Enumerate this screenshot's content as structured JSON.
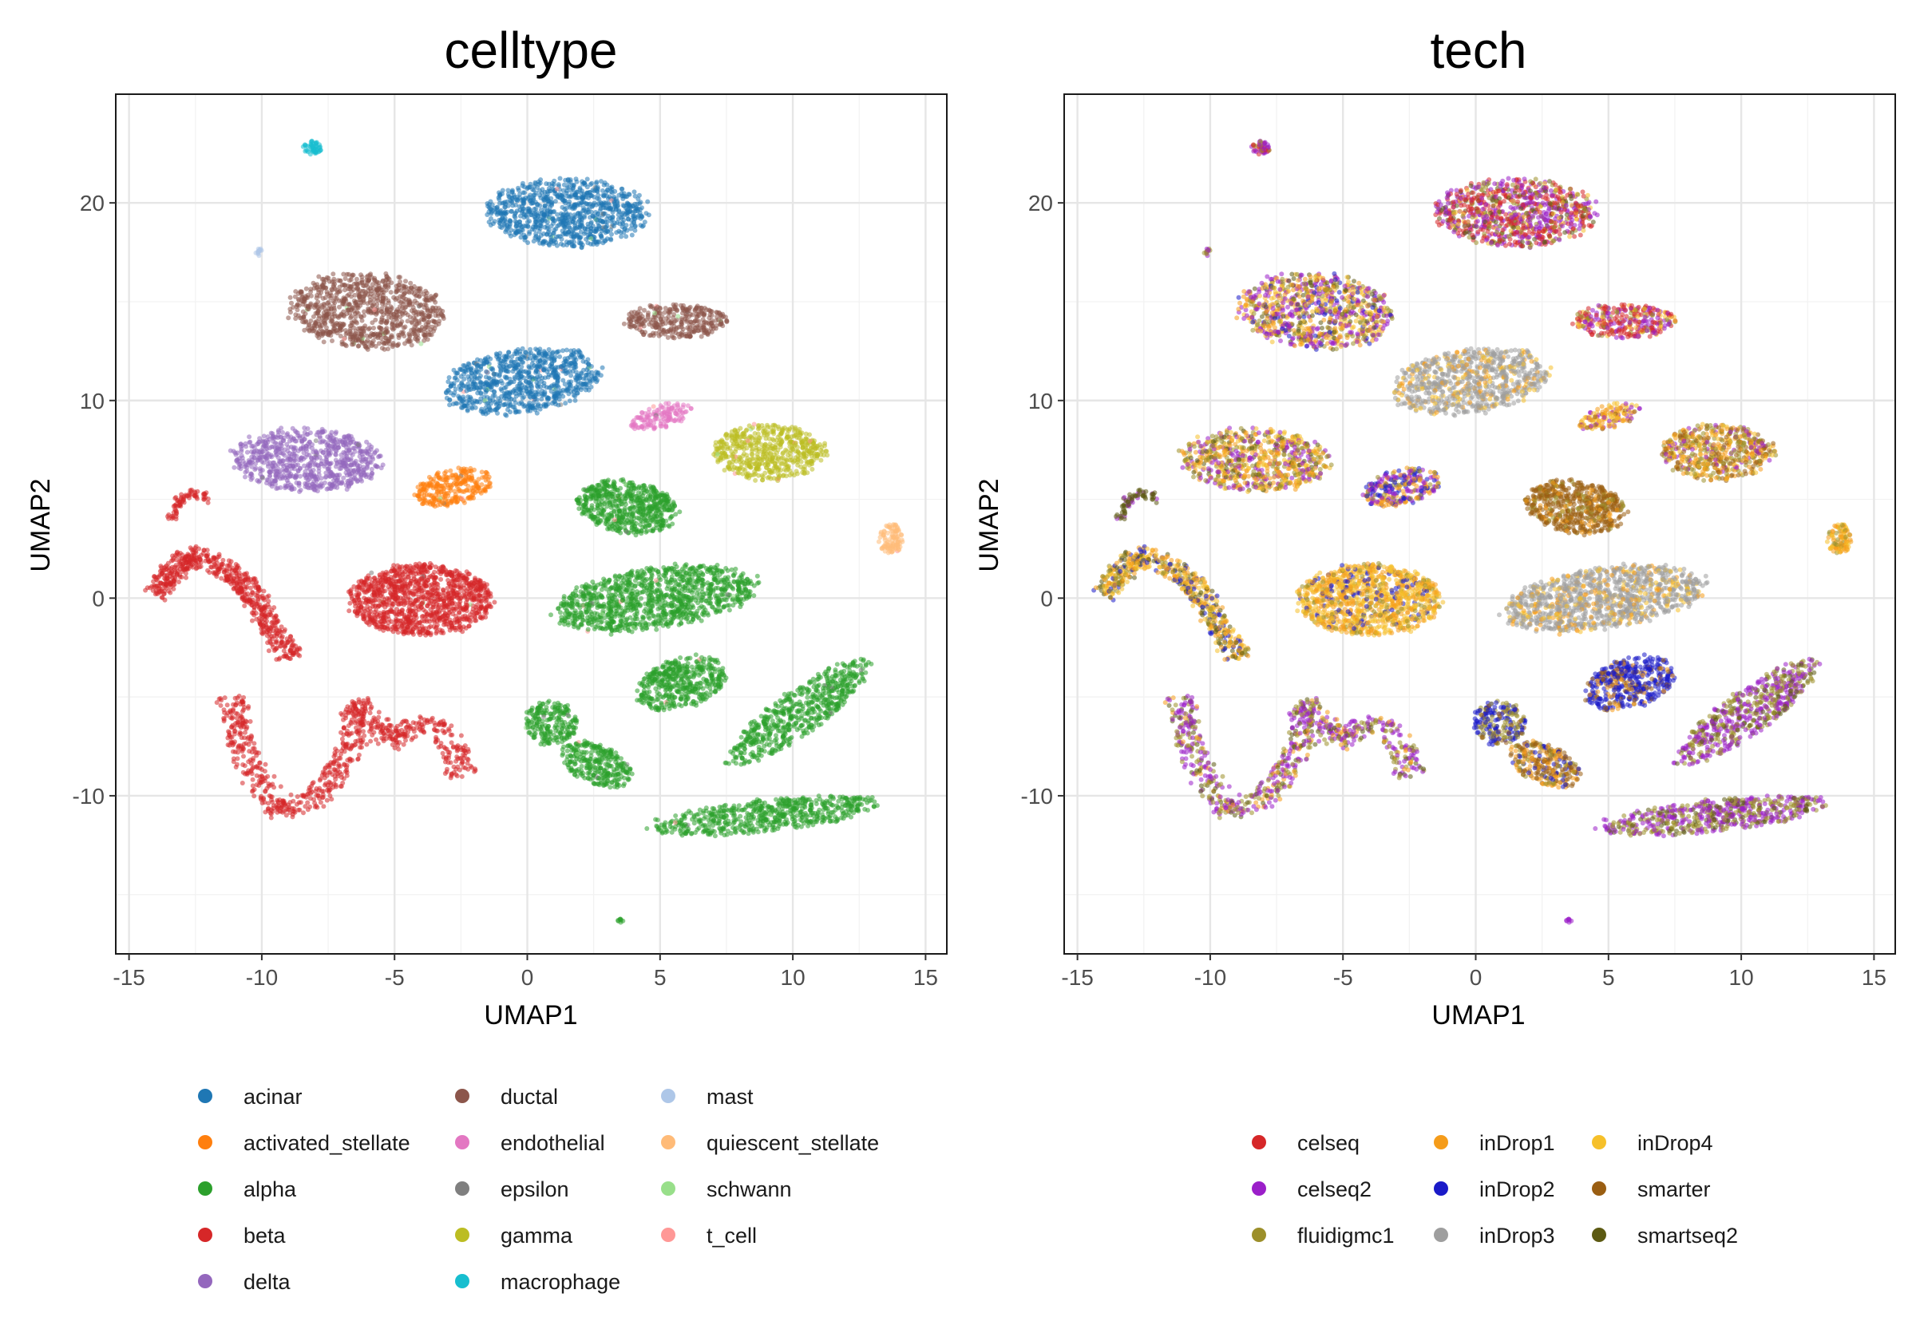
{
  "chart_data": [
    {
      "type": "scatter",
      "title": "celltype",
      "xlabel": "UMAP1",
      "ylabel": "UMAP2",
      "xlim": [
        -15.5,
        15.8
      ],
      "ylim": [
        -18,
        25.5
      ],
      "xticks": [
        -15,
        -10,
        -5,
        0,
        5,
        10,
        15
      ],
      "yticks": [
        -10,
        0,
        10,
        20
      ],
      "xtick_labels": [
        "-15",
        "-10",
        "-5",
        "0",
        "5",
        "10",
        "15"
      ],
      "ytick_labels": [
        "-10",
        "0",
        "10",
        "20"
      ],
      "grid": true,
      "legend_position": "bottom",
      "legend": [
        {
          "name": "acinar",
          "color": "#1f77b4"
        },
        {
          "name": "activated_stellate",
          "color": "#ff7f0e"
        },
        {
          "name": "alpha",
          "color": "#2ca02c"
        },
        {
          "name": "beta",
          "color": "#d62728"
        },
        {
          "name": "delta",
          "color": "#9467bd"
        },
        {
          "name": "ductal",
          "color": "#8c564b"
        },
        {
          "name": "endothelial",
          "color": "#e377c2"
        },
        {
          "name": "epsilon",
          "color": "#7f7f7f"
        },
        {
          "name": "gamma",
          "color": "#bcbd22"
        },
        {
          "name": "macrophage",
          "color": "#17becf"
        },
        {
          "name": "mast",
          "color": "#aec7e8"
        },
        {
          "name": "quiescent_stellate",
          "color": "#ffbb78"
        },
        {
          "name": "schwann",
          "color": "#98df8a"
        },
        {
          "name": "t_cell",
          "color": "#ff9896"
        }
      ]
    },
    {
      "type": "scatter",
      "title": "tech",
      "xlabel": "UMAP1",
      "ylabel": "UMAP2",
      "xlim": [
        -15.5,
        15.8
      ],
      "ylim": [
        -18,
        25.5
      ],
      "xticks": [
        -15,
        -10,
        -5,
        0,
        5,
        10,
        15
      ],
      "yticks": [
        -10,
        0,
        10,
        20
      ],
      "xtick_labels": [
        "-15",
        "-10",
        "-5",
        "0",
        "5",
        "10",
        "15"
      ],
      "ytick_labels": [
        "-10",
        "0",
        "10",
        "20"
      ],
      "grid": true,
      "legend_position": "bottom",
      "legend": [
        {
          "name": "celseq",
          "color": "#d62728"
        },
        {
          "name": "celseq2",
          "color": "#9b1fc9"
        },
        {
          "name": "fluidigmc1",
          "color": "#9c8f2a"
        },
        {
          "name": "inDrop1",
          "color": "#f59c1a"
        },
        {
          "name": "inDrop2",
          "color": "#1a1ac8"
        },
        {
          "name": "inDrop3",
          "color": "#9e9e9e"
        },
        {
          "name": "inDrop4",
          "color": "#f6c02a"
        },
        {
          "name": "smarter",
          "color": "#9a5e12"
        },
        {
          "name": "smartseq2",
          "color": "#5c5a12"
        }
      ]
    }
  ],
  "clusters": [
    {
      "cx": 1.5,
      "cy": 19.5,
      "rx": 3.0,
      "ry": 1.7,
      "angle": 0,
      "n": 900,
      "celltype": "acinar",
      "tech": {
        "celseq": 3,
        "celseq2": 3,
        "fluidigmc1": 1,
        "smartseq2": 1,
        "inDrop4": 1
      }
    },
    {
      "cx": -6.0,
      "cy": 14.5,
      "rx": 2.9,
      "ry": 1.9,
      "angle": -8,
      "n": 900,
      "celltype": "ductal",
      "tech": {
        "celseq2": 3,
        "fluidigmc1": 2,
        "inDrop1": 2,
        "inDrop4": 2,
        "smartseq2": 1,
        "inDrop2": 1
      }
    },
    {
      "cx": 5.6,
      "cy": 14.0,
      "rx": 1.9,
      "ry": 0.85,
      "angle": 0,
      "n": 320,
      "celltype": "ductal",
      "tech": {
        "celseq": 3,
        "celseq2": 2,
        "fluidigmc1": 1,
        "inDrop4": 1
      }
    },
    {
      "cx": -0.2,
      "cy": 11.0,
      "rx": 3.0,
      "ry": 1.6,
      "angle": 12,
      "n": 800,
      "celltype": "acinar",
      "tech": {
        "inDrop3": 6,
        "inDrop4": 1,
        "inDrop1": 1
      }
    },
    {
      "cx": 5.0,
      "cy": 9.2,
      "rx": 1.2,
      "ry": 0.6,
      "angle": 20,
      "n": 140,
      "celltype": "endothelial",
      "tech": {
        "inDrop1": 2,
        "inDrop4": 2,
        "celseq2": 1,
        "smarter": 1
      }
    },
    {
      "cx": -8.3,
      "cy": 7.0,
      "rx": 2.8,
      "ry": 1.6,
      "angle": -5,
      "n": 750,
      "celltype": "delta",
      "tech": {
        "celseq2": 2,
        "fluidigmc1": 2,
        "inDrop1": 2,
        "inDrop4": 2,
        "smartseq2": 1
      }
    },
    {
      "cx": 9.1,
      "cy": 7.4,
      "rx": 2.1,
      "ry": 1.4,
      "angle": 0,
      "n": 550,
      "celltype": "gamma",
      "tech": {
        "fluidigmc1": 2,
        "smarter": 2,
        "inDrop1": 2,
        "celseq2": 1,
        "inDrop4": 1
      }
    },
    {
      "cx": -2.8,
      "cy": 5.6,
      "rx": 1.5,
      "ry": 0.9,
      "angle": 20,
      "n": 280,
      "celltype": "activated_stellate",
      "tech": {
        "celseq2": 2,
        "inDrop2": 2,
        "inDrop1": 2,
        "fluidigmc1": 1
      }
    },
    {
      "cx": 3.8,
      "cy": 4.6,
      "rx": 1.9,
      "ry": 1.3,
      "angle": -15,
      "n": 600,
      "celltype": "alpha",
      "tech": {
        "smarter": 6,
        "fluidigmc1": 1,
        "inDrop1": 1
      }
    },
    {
      "cx": 13.7,
      "cy": 3.0,
      "rx": 0.45,
      "ry": 0.8,
      "angle": 0,
      "n": 100,
      "celltype": "quiescent_stellate",
      "tech": {
        "inDrop1": 2,
        "inDrop4": 2,
        "fluidigmc1": 1
      }
    },
    {
      "cx": -4.0,
      "cy": -0.1,
      "rx": 2.7,
      "ry": 1.8,
      "angle": 0,
      "n": 1100,
      "celltype": "beta",
      "tech": {
        "inDrop4": 4,
        "inDrop1": 3,
        "fluidigmc1": 1,
        "inDrop2": 1
      }
    },
    {
      "cx": 4.8,
      "cy": 0.0,
      "rx": 3.8,
      "ry": 1.5,
      "angle": 12,
      "n": 1100,
      "celltype": "alpha",
      "tech": {
        "inDrop3": 6,
        "inDrop4": 1,
        "inDrop1": 1
      }
    },
    {
      "cx": 5.8,
      "cy": -4.3,
      "rx": 1.8,
      "ry": 1.2,
      "angle": 30,
      "n": 450,
      "celltype": "alpha",
      "tech": {
        "inDrop2": 5,
        "smarter": 1,
        "inDrop1": 1
      }
    },
    {
      "cx": 0.9,
      "cy": -6.3,
      "rx": 1.0,
      "ry": 1.1,
      "angle": 0,
      "n": 220,
      "celltype": "alpha",
      "tech": {
        "inDrop2": 3,
        "fluidigmc1": 2,
        "smarter": 1
      }
    },
    {
      "cx": 2.6,
      "cy": -8.4,
      "rx": 1.5,
      "ry": 0.9,
      "angle": -40,
      "n": 300,
      "celltype": "alpha",
      "tech": {
        "smarter": 2,
        "inDrop1": 2,
        "fluidigmc1": 1,
        "inDrop2": 1
      }
    },
    {
      "cx": 10.2,
      "cy": -5.8,
      "rx": 3.6,
      "ry": 1.0,
      "angle": 45,
      "n": 600,
      "celltype": "alpha",
      "tech": {
        "celseq2": 3,
        "fluidigmc1": 2,
        "smartseq2": 1
      }
    },
    {
      "cx": 9.0,
      "cy": -11.0,
      "rx": 4.3,
      "ry": 0.8,
      "angle": 8,
      "n": 600,
      "celltype": "alpha",
      "tech": {
        "celseq2": 3,
        "fluidigmc1": 2,
        "smartseq2": 1
      }
    },
    {
      "cx": -8.1,
      "cy": 22.8,
      "rx": 0.35,
      "ry": 0.35,
      "angle": 0,
      "n": 50,
      "celltype": "macrophage",
      "tech": {
        "celseq2": 2,
        "fluidigmc1": 1,
        "celseq": 1
      }
    },
    {
      "cx": -10.1,
      "cy": 17.5,
      "rx": 0.15,
      "ry": 0.2,
      "angle": 0,
      "n": 14,
      "celltype": "mast",
      "tech": {
        "fluidigmc1": 1,
        "celseq2": 1
      }
    },
    {
      "cx": 3.5,
      "cy": -16.3,
      "rx": 0.12,
      "ry": 0.1,
      "angle": 0,
      "n": 8,
      "celltype": "alpha",
      "tech": {
        "celseq2": 1
      }
    }
  ],
  "curves": [
    {
      "celltype": "beta",
      "tech": {
        "inDrop1": 2,
        "inDrop4": 2,
        "inDrop2": 1,
        "fluidigmc1": 1,
        "smartseq2": 1
      },
      "width": 0.9,
      "n": 600,
      "pts": [
        [
          -14.0,
          0.2
        ],
        [
          -12.8,
          2.2
        ],
        [
          -11.5,
          1.6
        ],
        [
          -10.5,
          0.6
        ],
        [
          -9.8,
          -1.2
        ],
        [
          -8.9,
          -3.0
        ]
      ]
    },
    {
      "celltype": "beta",
      "tech": {
        "smartseq2": 3,
        "celseq2": 1
      },
      "width": 0.25,
      "n": 70,
      "pts": [
        [
          -13.4,
          4.0
        ],
        [
          -13.0,
          5.2
        ],
        [
          -12.6,
          5.3
        ],
        [
          -12.0,
          5.1
        ]
      ]
    },
    {
      "celltype": "beta",
      "tech": {
        "celseq2": 3,
        "fluidigmc1": 2,
        "smartseq2": 1,
        "inDrop1": 1
      },
      "width": 1.0,
      "n": 750,
      "pts": [
        [
          -11.2,
          -5.0
        ],
        [
          -10.5,
          -8.5
        ],
        [
          -9.3,
          -10.8
        ],
        [
          -7.8,
          -10.0
        ],
        [
          -6.6,
          -7.5
        ],
        [
          -6.5,
          -5.2
        ],
        [
          -5.2,
          -7.2
        ],
        [
          -3.8,
          -6.2
        ],
        [
          -2.8,
          -7.5
        ],
        [
          -2.4,
          -9.0
        ]
      ]
    }
  ]
}
